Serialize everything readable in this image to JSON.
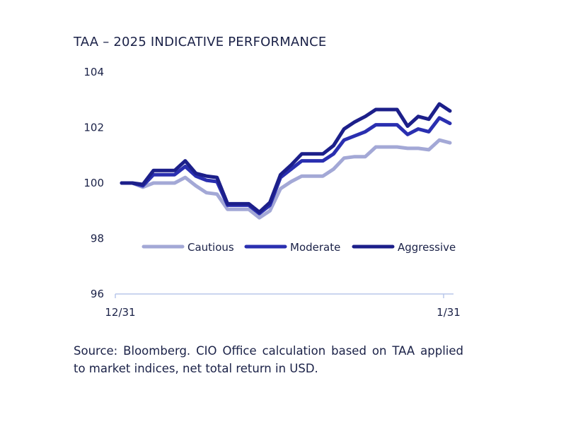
{
  "chart_data": {
    "type": "line",
    "title": "TAA – 2025 INDICATIVE PERFORMANCE",
    "xlabel": "",
    "ylabel": "",
    "ylim": [
      96,
      104
    ],
    "yticks": [
      96,
      98,
      100,
      102,
      104
    ],
    "x_tick_labels": [
      "12/31",
      "1/31"
    ],
    "legend_position": "center",
    "series": [
      {
        "name": "Cautious",
        "color": "#a3a8d6",
        "values": [
          100.0,
          100.0,
          99.85,
          100.0,
          100.0,
          100.0,
          100.2,
          99.9,
          99.65,
          99.6,
          99.05,
          99.05,
          99.05,
          98.75,
          99.0,
          99.8,
          100.05,
          100.25,
          100.25,
          100.25,
          100.5,
          100.9,
          100.95,
          100.95,
          101.3,
          101.3,
          101.3,
          101.25,
          101.25,
          101.2,
          101.55,
          101.45
        ]
      },
      {
        "name": "Moderate",
        "color": "#2a2fb0",
        "values": [
          100.0,
          100.0,
          99.9,
          100.3,
          100.3,
          100.3,
          100.6,
          100.25,
          100.1,
          100.05,
          99.2,
          99.2,
          99.2,
          98.9,
          99.2,
          100.2,
          100.5,
          100.8,
          100.8,
          100.8,
          101.05,
          101.55,
          101.7,
          101.85,
          102.1,
          102.1,
          102.1,
          101.75,
          101.95,
          101.85,
          102.35,
          102.15
        ]
      },
      {
        "name": "Aggressive",
        "color": "#1c1f8a",
        "values": [
          100.0,
          100.0,
          99.95,
          100.45,
          100.45,
          100.45,
          100.8,
          100.35,
          100.25,
          100.2,
          99.25,
          99.25,
          99.25,
          98.95,
          99.3,
          100.3,
          100.65,
          101.05,
          101.05,
          101.05,
          101.35,
          101.95,
          102.2,
          102.4,
          102.65,
          102.65,
          102.65,
          102.05,
          102.4,
          102.3,
          102.85,
          102.6
        ]
      }
    ]
  },
  "source_text": "Source: Bloomberg. CIO Office calculation based on TAA applied to market indices, net total return in USD."
}
